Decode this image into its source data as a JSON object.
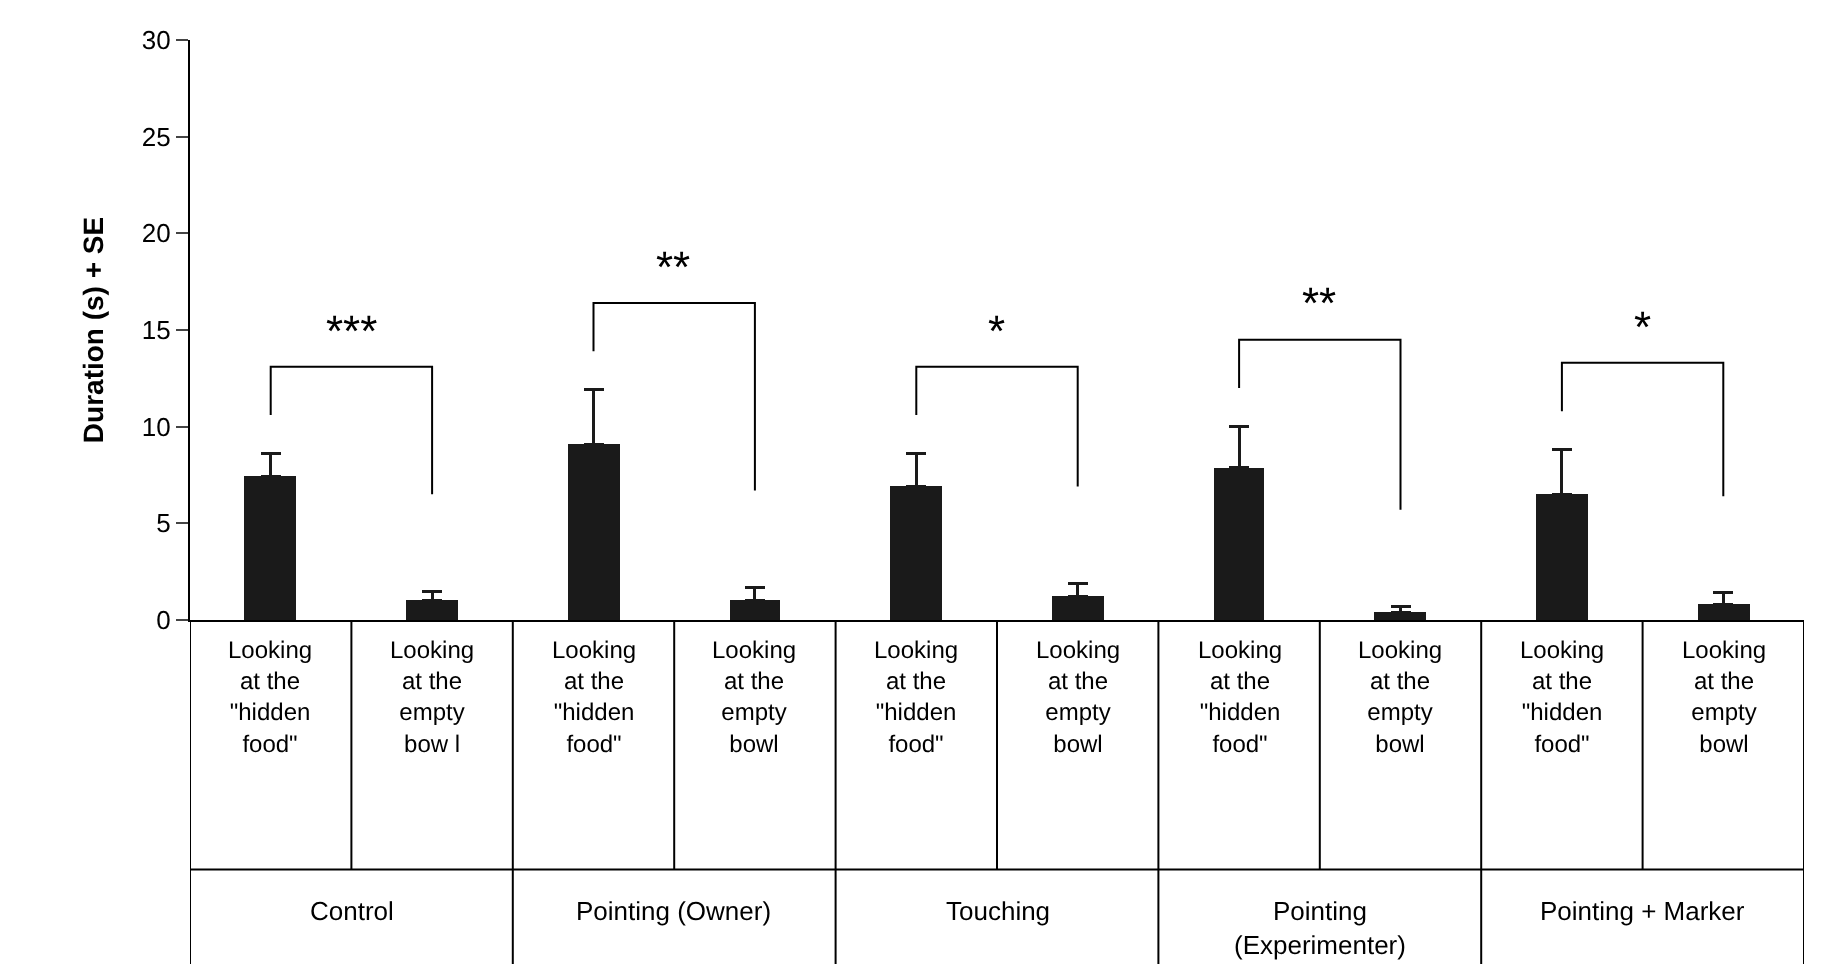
{
  "chart_data": {
    "type": "bar",
    "ylabel": "Duration (s) + SE",
    "categories": [
      "Looking at the \"hidden food\"",
      "Looking at the empty bow l",
      "Looking at the \"hidden food\"",
      "Looking at the empty bowl",
      "Looking at the \"hidden food\"",
      "Looking at the empty bowl",
      "Looking at the \"hidden food\"",
      "Looking at the empty bowl",
      "Looking at the \"hidden food\"",
      "Looking at the empty bowl"
    ],
    "values": [
      7.4,
      1.0,
      9.1,
      1.0,
      6.9,
      1.2,
      7.9,
      0.4,
      6.5,
      0.8
    ],
    "errors": [
      [
        7.4,
        8.6
      ],
      [
        1.0,
        1.5
      ],
      [
        9.1,
        11.9
      ],
      [
        1.0,
        1.7
      ],
      [
        6.9,
        8.6
      ],
      [
        1.2,
        1.9
      ],
      [
        7.9,
        10.0
      ],
      [
        0.4,
        0.7
      ],
      [
        6.5,
        8.8
      ],
      [
        0.8,
        1.4
      ]
    ],
    "color": "#1a1a1a",
    "ylim": [
      0,
      30
    ],
    "yticks": [
      0,
      5,
      10,
      15,
      20,
      25,
      30
    ],
    "legend": false,
    "annotations": [
      "***",
      "**",
      "*",
      "**",
      "*",
      "Control",
      "Pointing (Owner)",
      "Touching",
      "Pointing (Experimenter)",
      "Pointing + Marker"
    ]
  }
}
